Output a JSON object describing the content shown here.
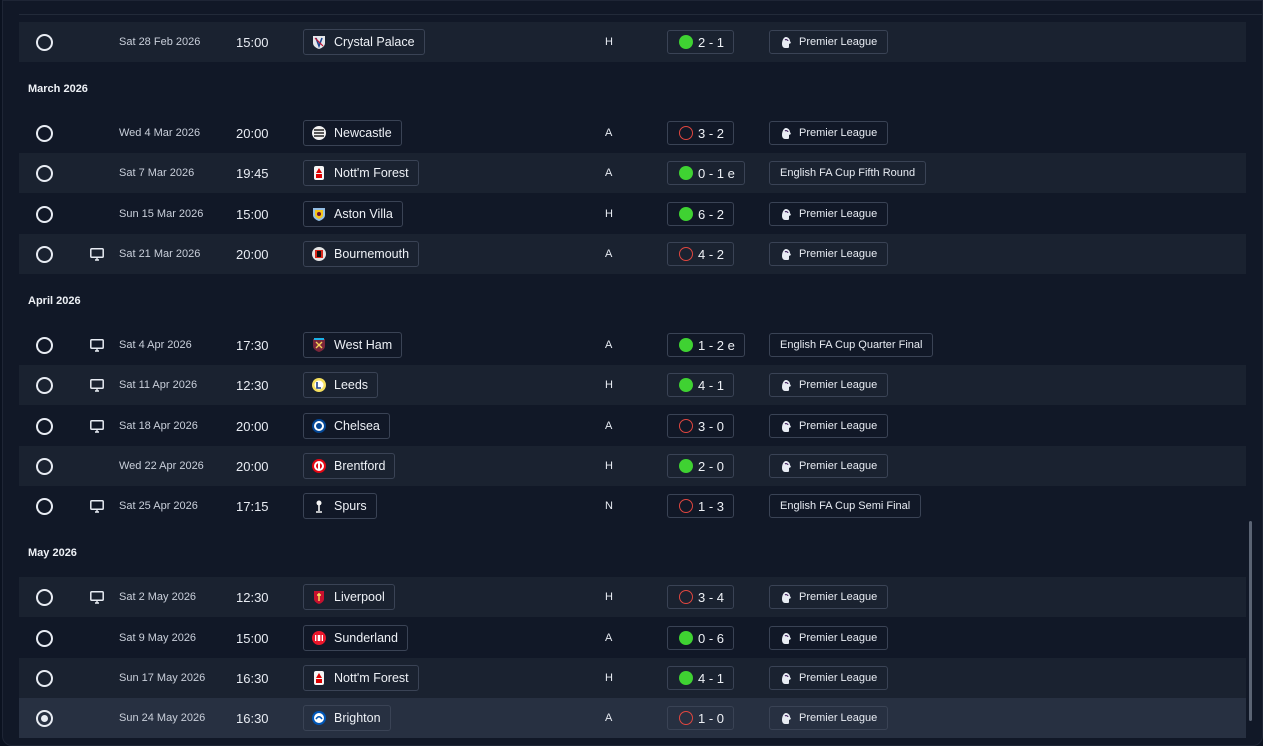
{
  "colors": {
    "win": "#3fd232",
    "loss": "#e0463f",
    "background": "#111827",
    "row_alt": "#1a2230"
  },
  "months": [
    {
      "label": "March 2026"
    },
    {
      "label": "April 2026"
    },
    {
      "label": "May 2026"
    }
  ],
  "fixtures": [
    {
      "date": "Sat 28 Feb 2026",
      "time": "15:00",
      "opponent": "Crystal Palace",
      "crest_icon": "crystal-palace-crest",
      "venue": "H",
      "result": "win",
      "score": "2 - 1",
      "competition": "Premier League",
      "tv": false,
      "selected": false
    },
    {
      "date": "Wed 4 Mar 2026",
      "time": "20:00",
      "opponent": "Newcastle",
      "crest_icon": "newcastle-crest",
      "venue": "A",
      "result": "loss",
      "score": "3 - 2",
      "competition": "Premier League",
      "tv": false,
      "selected": false
    },
    {
      "date": "Sat 7 Mar 2026",
      "time": "19:45",
      "opponent": "Nott'm Forest",
      "crest_icon": "nottm-forest-crest",
      "venue": "A",
      "result": "win",
      "score": "0 - 1 e",
      "competition": "English FA Cup Fifth Round",
      "tv": false,
      "selected": false
    },
    {
      "date": "Sun 15 Mar 2026",
      "time": "15:00",
      "opponent": "Aston Villa",
      "crest_icon": "aston-villa-crest",
      "venue": "H",
      "result": "win",
      "score": "6 - 2",
      "competition": "Premier League",
      "tv": false,
      "selected": false
    },
    {
      "date": "Sat 21 Mar 2026",
      "time": "20:00",
      "opponent": "Bournemouth",
      "crest_icon": "bournemouth-crest",
      "venue": "A",
      "result": "loss",
      "score": "4 - 2",
      "competition": "Premier League",
      "tv": true,
      "selected": false
    },
    {
      "date": "Sat 4 Apr 2026",
      "time": "17:30",
      "opponent": "West Ham",
      "crest_icon": "west-ham-crest",
      "venue": "A",
      "result": "win",
      "score": "1 - 2 e",
      "competition": "English FA Cup Quarter Final",
      "tv": true,
      "selected": false
    },
    {
      "date": "Sat 11 Apr 2026",
      "time": "12:30",
      "opponent": "Leeds",
      "crest_icon": "leeds-crest",
      "venue": "H",
      "result": "win",
      "score": "4 - 1",
      "competition": "Premier League",
      "tv": true,
      "selected": false
    },
    {
      "date": "Sat 18 Apr 2026",
      "time": "20:00",
      "opponent": "Chelsea",
      "crest_icon": "chelsea-crest",
      "venue": "A",
      "result": "loss",
      "score": "3 - 0",
      "competition": "Premier League",
      "tv": true,
      "selected": false
    },
    {
      "date": "Wed 22 Apr 2026",
      "time": "20:00",
      "opponent": "Brentford",
      "crest_icon": "brentford-crest",
      "venue": "H",
      "result": "win",
      "score": "2 - 0",
      "competition": "Premier League",
      "tv": false,
      "selected": false
    },
    {
      "date": "Sat 25 Apr 2026",
      "time": "17:15",
      "opponent": "Spurs",
      "crest_icon": "spurs-crest",
      "venue": "N",
      "result": "loss",
      "score": "1 - 3",
      "competition": "English FA Cup Semi Final",
      "tv": true,
      "selected": false
    },
    {
      "date": "Sat 2 May 2026",
      "time": "12:30",
      "opponent": "Liverpool",
      "crest_icon": "liverpool-crest",
      "venue": "H",
      "result": "loss",
      "score": "3 - 4",
      "competition": "Premier League",
      "tv": true,
      "selected": false
    },
    {
      "date": "Sat 9 May 2026",
      "time": "15:00",
      "opponent": "Sunderland",
      "crest_icon": "sunderland-crest",
      "venue": "A",
      "result": "win",
      "score": "0 - 6",
      "competition": "Premier League",
      "tv": false,
      "selected": false
    },
    {
      "date": "Sun 17 May 2026",
      "time": "16:30",
      "opponent": "Nott'm Forest",
      "crest_icon": "nottm-forest-crest",
      "venue": "H",
      "result": "win",
      "score": "4 - 1",
      "competition": "Premier League",
      "tv": false,
      "selected": false
    },
    {
      "date": "Sun 24 May 2026",
      "time": "16:30",
      "opponent": "Brighton",
      "crest_icon": "brighton-crest",
      "venue": "A",
      "result": "loss",
      "score": "1 - 0",
      "competition": "Premier League",
      "tv": false,
      "selected": true
    }
  ]
}
